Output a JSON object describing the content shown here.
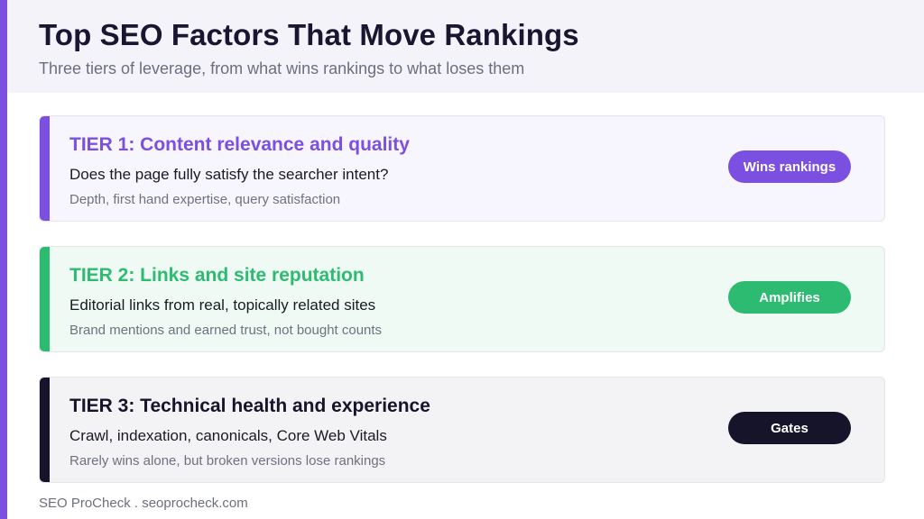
{
  "header": {
    "title": "Top SEO Factors That Move Rankings",
    "subtitle": "Three tiers of leverage, from what wins rankings to what loses them"
  },
  "tiers": [
    {
      "title": "TIER 1: Content relevance and quality",
      "question": "Does the page fully satisfy the searcher intent?",
      "detail": "Depth, first hand expertise, query satisfaction",
      "badge": "Wins rankings",
      "color": "#7b4fe0"
    },
    {
      "title": "TIER 2: Links and site reputation",
      "question": "Editorial links from real, topically related sites",
      "detail": "Brand mentions and earned trust, not bought counts",
      "badge": "Amplifies",
      "color": "#2dbb72"
    },
    {
      "title": "TIER 3: Technical health and experience",
      "question": "Crawl, indexation, canonicals, Core Web Vitals",
      "detail": "Rarely wins alone, but broken versions lose rankings",
      "badge": "Gates",
      "color": "#16142a"
    }
  ],
  "footer": {
    "text": "SEO ProCheck . seoprocheck.com"
  },
  "colors": {
    "accent": "#7b4fe0",
    "header_bg": "#f4f3fa",
    "text_dark": "#1a1530",
    "text_muted": "#6b6f7d"
  }
}
